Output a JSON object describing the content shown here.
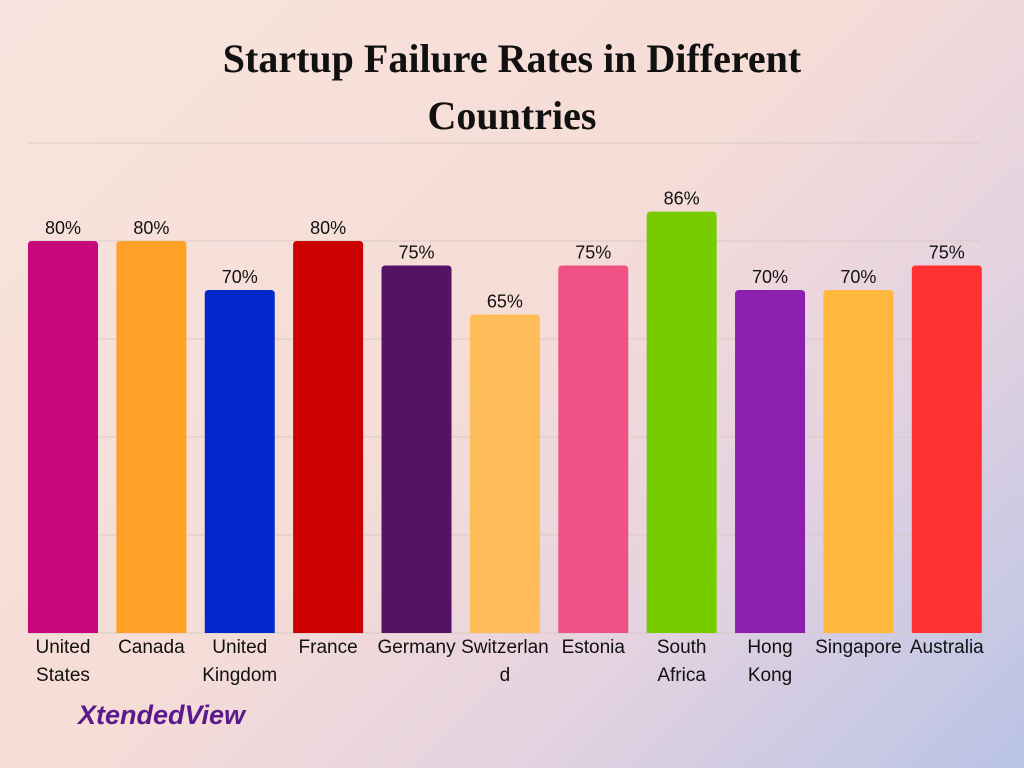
{
  "chart_data": {
    "type": "bar",
    "title": "Startup Failure Rates in Different Countries",
    "categories": [
      "United States",
      "Canada",
      "United Kingdom",
      "France",
      "Germany",
      "Switzerland",
      "Estonia",
      "South Africa",
      "Hong Kong",
      "Singapore",
      "Australia"
    ],
    "values": [
      80,
      80,
      70,
      80,
      75,
      65,
      75,
      86,
      70,
      70,
      75
    ],
    "value_labels": [
      "80%",
      "80%",
      "70%",
      "80%",
      "75%",
      "65%",
      "75%",
      "86%",
      "70%",
      "70%",
      "75%"
    ],
    "colors": [
      "#c8077d",
      "#ffa126",
      "#0227cb",
      "#cc0000",
      "#561264",
      "#ffbd59",
      "#ef5284",
      "#77cc00",
      "#8c1fae",
      "#ffb83d",
      "#ff3131"
    ],
    "ylim": [
      0,
      100
    ],
    "yticks": [
      0,
      20,
      40,
      60,
      80,
      100
    ],
    "grid": true,
    "logo_text": "XtendedView"
  }
}
